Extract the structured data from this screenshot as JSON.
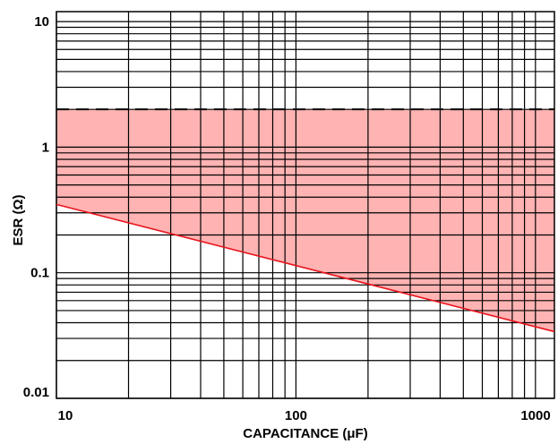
{
  "chart_data": {
    "type": "area",
    "xlabel": "CAPACITANCE (μF)",
    "ylabel": "ESR (Ω)",
    "x_scale": "log",
    "y_scale": "log",
    "xlim": [
      10,
      1200
    ],
    "ylim": [
      0.01,
      12
    ],
    "grid": true,
    "x_ticks": [
      {
        "value": 10,
        "label": "10"
      },
      {
        "value": 100,
        "label": "100"
      },
      {
        "value": 1000,
        "label": "1000"
      }
    ],
    "y_ticks": [
      {
        "value": 10,
        "label": "10"
      },
      {
        "value": 1,
        "label": "1"
      },
      {
        "value": 0.1,
        "label": "0.1"
      },
      {
        "value": 0.01,
        "label": "0.01"
      }
    ],
    "series": [
      {
        "style": "dashed",
        "color": "#000000",
        "x": [
          10,
          1200
        ],
        "y": [
          2,
          2
        ]
      },
      {
        "style": "solid",
        "color": "#e8141c",
        "x": [
          10,
          1200
        ],
        "y": [
          0.35,
          0.034
        ]
      }
    ],
    "fill": {
      "color": "#ffb3b3",
      "upper": 2,
      "lower_series": 1
    }
  }
}
